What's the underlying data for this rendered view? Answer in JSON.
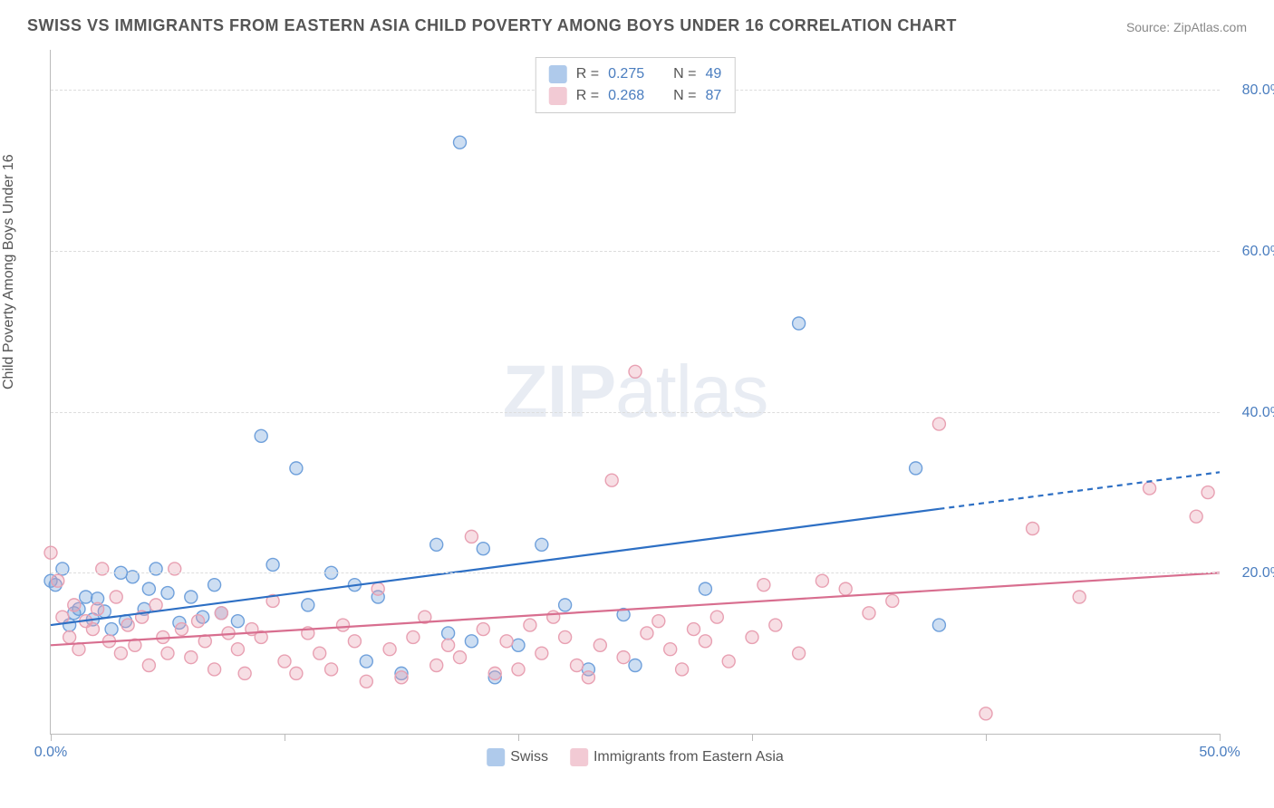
{
  "title": "SWISS VS IMMIGRANTS FROM EASTERN ASIA CHILD POVERTY AMONG BOYS UNDER 16 CORRELATION CHART",
  "source": "Source: ZipAtlas.com",
  "ylabel": "Child Poverty Among Boys Under 16",
  "watermark_bold": "ZIP",
  "watermark_light": "atlas",
  "chart": {
    "type": "scatter",
    "background_color": "#ffffff",
    "grid_color": "#dddddd",
    "border_color": "#bbbbbb",
    "text_color": "#555555",
    "axis_label_color": "#4a7dbf",
    "xlim": [
      0,
      50
    ],
    "ylim": [
      0,
      85
    ],
    "x_ticks": [
      0,
      10,
      20,
      30,
      40,
      50
    ],
    "x_tick_labels": [
      "0.0%",
      "",
      "",
      "",
      "",
      "50.0%"
    ],
    "y_gridlines": [
      20,
      40,
      60,
      80
    ],
    "y_tick_labels": [
      "20.0%",
      "40.0%",
      "60.0%",
      "80.0%"
    ],
    "marker_radius": 7,
    "marker_stroke_width": 1.4,
    "marker_fill_opacity": 0.35,
    "trend_line_width": 2.2,
    "series": [
      {
        "name": "Swiss",
        "color": "#6fa0db",
        "line_color": "#2d6fc4",
        "R": "0.275",
        "N": "49",
        "trend": {
          "x1": 0,
          "y1": 13.5,
          "x2": 50,
          "y2": 32.5,
          "solid_until_x": 38
        },
        "points": [
          [
            0.0,
            19.0
          ],
          [
            0.2,
            18.5
          ],
          [
            0.5,
            20.5
          ],
          [
            0.8,
            13.5
          ],
          [
            1.0,
            15.0
          ],
          [
            1.2,
            15.5
          ],
          [
            1.5,
            17.0
          ],
          [
            1.8,
            14.2
          ],
          [
            2.0,
            16.8
          ],
          [
            2.3,
            15.2
          ],
          [
            2.6,
            13.0
          ],
          [
            3.0,
            20.0
          ],
          [
            3.2,
            14.0
          ],
          [
            3.5,
            19.5
          ],
          [
            4.0,
            15.5
          ],
          [
            4.2,
            18.0
          ],
          [
            4.5,
            20.5
          ],
          [
            5.0,
            17.5
          ],
          [
            5.5,
            13.8
          ],
          [
            6.0,
            17.0
          ],
          [
            6.5,
            14.5
          ],
          [
            7.0,
            18.5
          ],
          [
            7.3,
            15.0
          ],
          [
            8.0,
            14.0
          ],
          [
            9.0,
            37.0
          ],
          [
            9.5,
            21.0
          ],
          [
            10.5,
            33.0
          ],
          [
            11.0,
            16.0
          ],
          [
            12.0,
            20.0
          ],
          [
            13.0,
            18.5
          ],
          [
            13.5,
            9.0
          ],
          [
            14.0,
            17.0
          ],
          [
            15.0,
            7.5
          ],
          [
            16.5,
            23.5
          ],
          [
            17.0,
            12.5
          ],
          [
            17.5,
            73.5
          ],
          [
            18.0,
            11.5
          ],
          [
            18.5,
            23.0
          ],
          [
            19.0,
            7.0
          ],
          [
            20.0,
            11.0
          ],
          [
            21.0,
            23.5
          ],
          [
            22.0,
            16.0
          ],
          [
            23.0,
            8.0
          ],
          [
            24.5,
            14.8
          ],
          [
            25.0,
            8.5
          ],
          [
            28.0,
            18.0
          ],
          [
            32.0,
            51.0
          ],
          [
            37.0,
            33.0
          ],
          [
            38.0,
            13.5
          ]
        ]
      },
      {
        "name": "Immigrants from Eastern Asia",
        "color": "#e8a0b2",
        "line_color": "#d86e8f",
        "R": "0.268",
        "N": "87",
        "trend": {
          "x1": 0,
          "y1": 11.0,
          "x2": 50,
          "y2": 20.0,
          "solid_until_x": 50
        },
        "points": [
          [
            0.0,
            22.5
          ],
          [
            0.3,
            19.0
          ],
          [
            0.5,
            14.5
          ],
          [
            0.8,
            12.0
          ],
          [
            1.0,
            16.0
          ],
          [
            1.2,
            10.5
          ],
          [
            1.5,
            14.0
          ],
          [
            1.8,
            13.0
          ],
          [
            2.0,
            15.5
          ],
          [
            2.2,
            20.5
          ],
          [
            2.5,
            11.5
          ],
          [
            2.8,
            17.0
          ],
          [
            3.0,
            10.0
          ],
          [
            3.3,
            13.5
          ],
          [
            3.6,
            11.0
          ],
          [
            3.9,
            14.5
          ],
          [
            4.2,
            8.5
          ],
          [
            4.5,
            16.0
          ],
          [
            4.8,
            12.0
          ],
          [
            5.0,
            10.0
          ],
          [
            5.3,
            20.5
          ],
          [
            5.6,
            13.0
          ],
          [
            6.0,
            9.5
          ],
          [
            6.3,
            14.0
          ],
          [
            6.6,
            11.5
          ],
          [
            7.0,
            8.0
          ],
          [
            7.3,
            15.0
          ],
          [
            7.6,
            12.5
          ],
          [
            8.0,
            10.5
          ],
          [
            8.3,
            7.5
          ],
          [
            8.6,
            13.0
          ],
          [
            9.0,
            12.0
          ],
          [
            9.5,
            16.5
          ],
          [
            10.0,
            9.0
          ],
          [
            10.5,
            7.5
          ],
          [
            11.0,
            12.5
          ],
          [
            11.5,
            10.0
          ],
          [
            12.0,
            8.0
          ],
          [
            12.5,
            13.5
          ],
          [
            13.0,
            11.5
          ],
          [
            13.5,
            6.5
          ],
          [
            14.0,
            18.0
          ],
          [
            14.5,
            10.5
          ],
          [
            15.0,
            7.0
          ],
          [
            15.5,
            12.0
          ],
          [
            16.0,
            14.5
          ],
          [
            16.5,
            8.5
          ],
          [
            17.0,
            11.0
          ],
          [
            17.5,
            9.5
          ],
          [
            18.0,
            24.5
          ],
          [
            18.5,
            13.0
          ],
          [
            19.0,
            7.5
          ],
          [
            19.5,
            11.5
          ],
          [
            20.0,
            8.0
          ],
          [
            20.5,
            13.5
          ],
          [
            21.0,
            10.0
          ],
          [
            21.5,
            14.5
          ],
          [
            22.0,
            12.0
          ],
          [
            22.5,
            8.5
          ],
          [
            23.0,
            7.0
          ],
          [
            23.5,
            11.0
          ],
          [
            24.0,
            31.5
          ],
          [
            24.5,
            9.5
          ],
          [
            25.0,
            45.0
          ],
          [
            25.5,
            12.5
          ],
          [
            26.0,
            14.0
          ],
          [
            26.5,
            10.5
          ],
          [
            27.0,
            8.0
          ],
          [
            27.5,
            13.0
          ],
          [
            28.0,
            11.5
          ],
          [
            28.5,
            14.5
          ],
          [
            29.0,
            9.0
          ],
          [
            30.0,
            12.0
          ],
          [
            30.5,
            18.5
          ],
          [
            31.0,
            13.5
          ],
          [
            32.0,
            10.0
          ],
          [
            33.0,
            19.0
          ],
          [
            34.0,
            18.0
          ],
          [
            35.0,
            15.0
          ],
          [
            36.0,
            16.5
          ],
          [
            38.0,
            38.5
          ],
          [
            40.0,
            2.5
          ],
          [
            42.0,
            25.5
          ],
          [
            44.0,
            17.0
          ],
          [
            47.0,
            30.5
          ],
          [
            49.0,
            27.0
          ],
          [
            49.5,
            30.0
          ]
        ]
      }
    ]
  },
  "legend_stats": {
    "r_label": "R =",
    "n_label": "N ="
  },
  "legend_series": [
    "Swiss",
    "Immigrants from Eastern Asia"
  ]
}
